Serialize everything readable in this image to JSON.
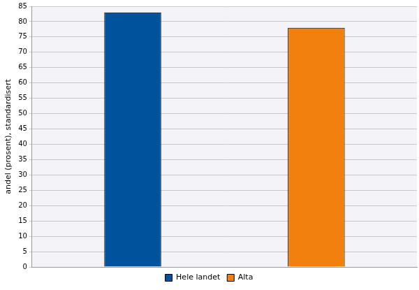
{
  "chart_data": {
    "type": "bar",
    "y_label": "andel (prosent), standardisert",
    "categories": [
      null
    ],
    "series": [
      {
        "name": "Hele landet",
        "color": "#00529c",
        "values": [
          83
        ]
      },
      {
        "name": "Alta",
        "color": "#f2800f",
        "values": [
          78
        ]
      }
    ],
    "ylim": [
      0,
      85
    ],
    "yticks": [
      0,
      5,
      10,
      15,
      20,
      25,
      30,
      35,
      40,
      45,
      50,
      55,
      60,
      65,
      70,
      75,
      80,
      85
    ],
    "grid": true,
    "legend": "bottom",
    "tick_labels": "y"
  }
}
